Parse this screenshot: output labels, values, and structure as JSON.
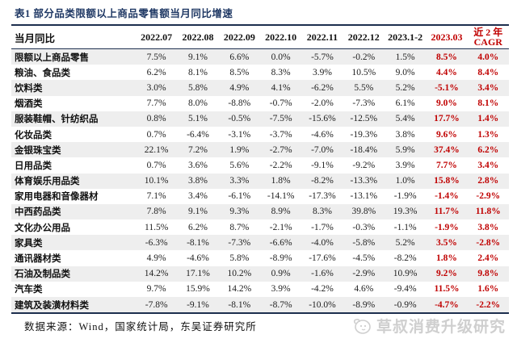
{
  "title": "表1  部分品类限额以上商品零售额当月同比增速",
  "colors": {
    "accent_red": "#c00000",
    "title_navy": "#1f3864",
    "row_stripe": "#eeeeee",
    "table_border": "#1d2f4e",
    "watermark_gray": "#cfcfcf"
  },
  "table": {
    "row_header": "当月同比",
    "date_columns": [
      "2022.07",
      "2022.08",
      "2022.09",
      "2022.10",
      "2022.11",
      "2022.12",
      "2023.1-2"
    ],
    "current_column": "2023.03",
    "cagr_column_line1": "近 2 年",
    "cagr_column_line2": "CAGR",
    "rows": [
      {
        "name": "限额以上商品零售",
        "values": [
          "7.5%",
          "9.1%",
          "6.6%",
          "0.0%",
          "-5.7%",
          "-0.2%",
          "1.5%",
          "8.5%",
          "4.0%"
        ]
      },
      {
        "name": "粮油、食品类",
        "values": [
          "6.2%",
          "8.1%",
          "8.5%",
          "8.3%",
          "3.9%",
          "10.5%",
          "9.0%",
          "4.4%",
          "8.4%"
        ]
      },
      {
        "name": "饮料类",
        "values": [
          "3.0%",
          "5.8%",
          "4.9%",
          "4.1%",
          "-6.2%",
          "5.5%",
          "5.2%",
          "-5.1%",
          "3.4%"
        ]
      },
      {
        "name": "烟酒类",
        "values": [
          "7.7%",
          "8.0%",
          "-8.8%",
          "-0.7%",
          "-2.0%",
          "-7.3%",
          "6.1%",
          "9.0%",
          "8.1%"
        ]
      },
      {
        "name": "服装鞋帽、针纺织品",
        "values": [
          "0.8%",
          "5.1%",
          "-0.5%",
          "-7.5%",
          "-15.6%",
          "-12.5%",
          "5.4%",
          "17.7%",
          "1.4%"
        ]
      },
      {
        "name": "化妆品类",
        "values": [
          "0.7%",
          "-6.4%",
          "-3.1%",
          "-3.7%",
          "-4.6%",
          "-19.3%",
          "3.8%",
          "9.6%",
          "1.3%"
        ]
      },
      {
        "name": "金银珠宝类",
        "values": [
          "22.1%",
          "7.2%",
          "1.9%",
          "-2.7%",
          "-7.0%",
          "-18.4%",
          "5.9%",
          "37.4%",
          "6.2%"
        ]
      },
      {
        "name": "日用品类",
        "values": [
          "0.7%",
          "3.6%",
          "5.6%",
          "-2.2%",
          "-9.1%",
          "-9.2%",
          "3.9%",
          "7.7%",
          "3.4%"
        ]
      },
      {
        "name": "体育娱乐用品类",
        "values": [
          "10.1%",
          "3.8%",
          "3.3%",
          "1.8%",
          "-8.2%",
          "-13.3%",
          "1.0%",
          "15.8%",
          "2.8%"
        ]
      },
      {
        "name": "家用电器和音像器材",
        "values": [
          "7.1%",
          "3.4%",
          "-6.1%",
          "-14.1%",
          "-17.3%",
          "-13.1%",
          "-1.9%",
          "-1.4%",
          "-2.9%"
        ]
      },
      {
        "name": "中西药品类",
        "values": [
          "7.8%",
          "9.1%",
          "9.3%",
          "8.9%",
          "8.3%",
          "39.8%",
          "19.3%",
          "11.7%",
          "11.8%"
        ]
      },
      {
        "name": "文化办公用品",
        "values": [
          "11.5%",
          "6.2%",
          "8.7%",
          "-2.1%",
          "-1.7%",
          "-0.3%",
          "-1.1%",
          "-1.9%",
          "3.8%"
        ]
      },
      {
        "name": "家具类",
        "values": [
          "-6.3%",
          "-8.1%",
          "-7.3%",
          "-6.6%",
          "-4.0%",
          "-5.8%",
          "5.2%",
          "3.5%",
          "-2.8%"
        ]
      },
      {
        "name": "通讯器材类",
        "values": [
          "4.9%",
          "-4.6%",
          "5.8%",
          "-8.9%",
          "-17.6%",
          "-4.5%",
          "-8.2%",
          "1.8%",
          "2.4%"
        ]
      },
      {
        "name": "石油及制品类",
        "values": [
          "14.2%",
          "17.1%",
          "10.2%",
          "0.9%",
          "-1.6%",
          "-2.9%",
          "10.9%",
          "9.2%",
          "9.8%"
        ]
      },
      {
        "name": "汽车类",
        "values": [
          "9.7%",
          "15.9%",
          "14.2%",
          "3.9%",
          "-4.2%",
          "4.6%",
          "-9.4%",
          "11.5%",
          "1.6%"
        ]
      },
      {
        "name": "建筑及装潢材料类",
        "values": [
          "-7.8%",
          "-9.1%",
          "-8.1%",
          "-8.7%",
          "-10.0%",
          "-8.9%",
          "-0.9%",
          "-4.7%",
          "-2.2%"
        ]
      }
    ]
  },
  "footer": {
    "source": "数据来源：Wind，国家统计局，东吴证券研究所"
  },
  "watermark": {
    "text": "草叔消费升级研究"
  }
}
